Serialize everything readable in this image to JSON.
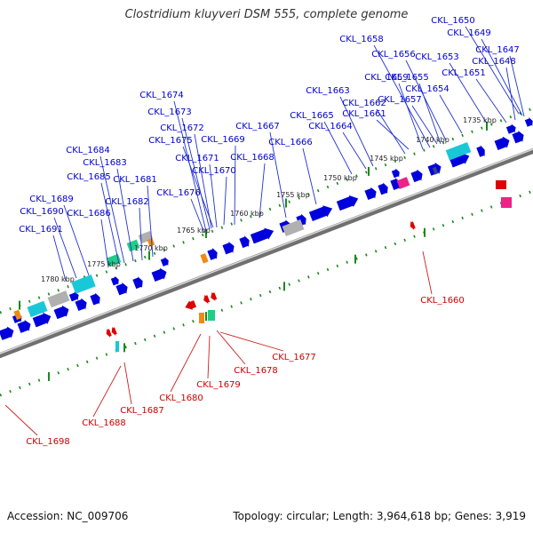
{
  "title": "Clostridium kluyveri DSM 555, complete genome",
  "footer": {
    "accession": "Accession: NC_009706",
    "summary": "Topology: circular; Length: 3,964,618 bp; Genes: 3,919"
  },
  "colors": {
    "forward_gene": "#0000dd",
    "reverse_gene": "#dd0000",
    "forward_label": "#0000cc",
    "reverse_label": "#cc0000",
    "backbone": "#8c8c8c",
    "ruler": "#1a8a1a",
    "cyan": "#19c8d8",
    "green": "#22cc88",
    "orange": "#f08a10",
    "pink": "#ee2288",
    "gray": "#b0b0b0"
  },
  "ruler_labels": [
    "1735 kbp",
    "1740 kbp",
    "1745 kbp",
    "1750 kbp",
    "1755 kbp",
    "1760 kbp",
    "1765 kbp",
    "1770 kbp",
    "1775 kbp",
    "1780 kbp"
  ],
  "forward_genes": [
    "CKL_1650",
    "CKL_1649",
    "CKL_1647",
    "CKL_1648",
    "CKL_1658",
    "CKL_1656",
    "CKL_1653",
    "CKL_1651",
    "CKL_1659",
    "CKL_1655",
    "CKL_1654",
    "CKL_1663",
    "CKL_1662",
    "CKL_1657",
    "CKL_1665",
    "CKL_1661",
    "CKL_1674",
    "CKL_1664",
    "CKL_1673",
    "CKL_1667",
    "CKL_1672",
    "CKL_1675",
    "CKL_1669",
    "CKL_1666",
    "CKL_1684",
    "CKL_1668",
    "CKL_1671",
    "CKL_1683",
    "CKL_1670",
    "CKL_1685",
    "CKL_1681",
    "CKL_1676",
    "CKL_1689",
    "CKL_1682",
    "CKL_1690",
    "CKL_1686",
    "CKL_1691"
  ],
  "reverse_genes": [
    "CKL_1660",
    "CKL_1677",
    "CKL_1678",
    "CKL_1679",
    "CKL_1680",
    "CKL_1687",
    "CKL_1688",
    "CKL_1698"
  ]
}
